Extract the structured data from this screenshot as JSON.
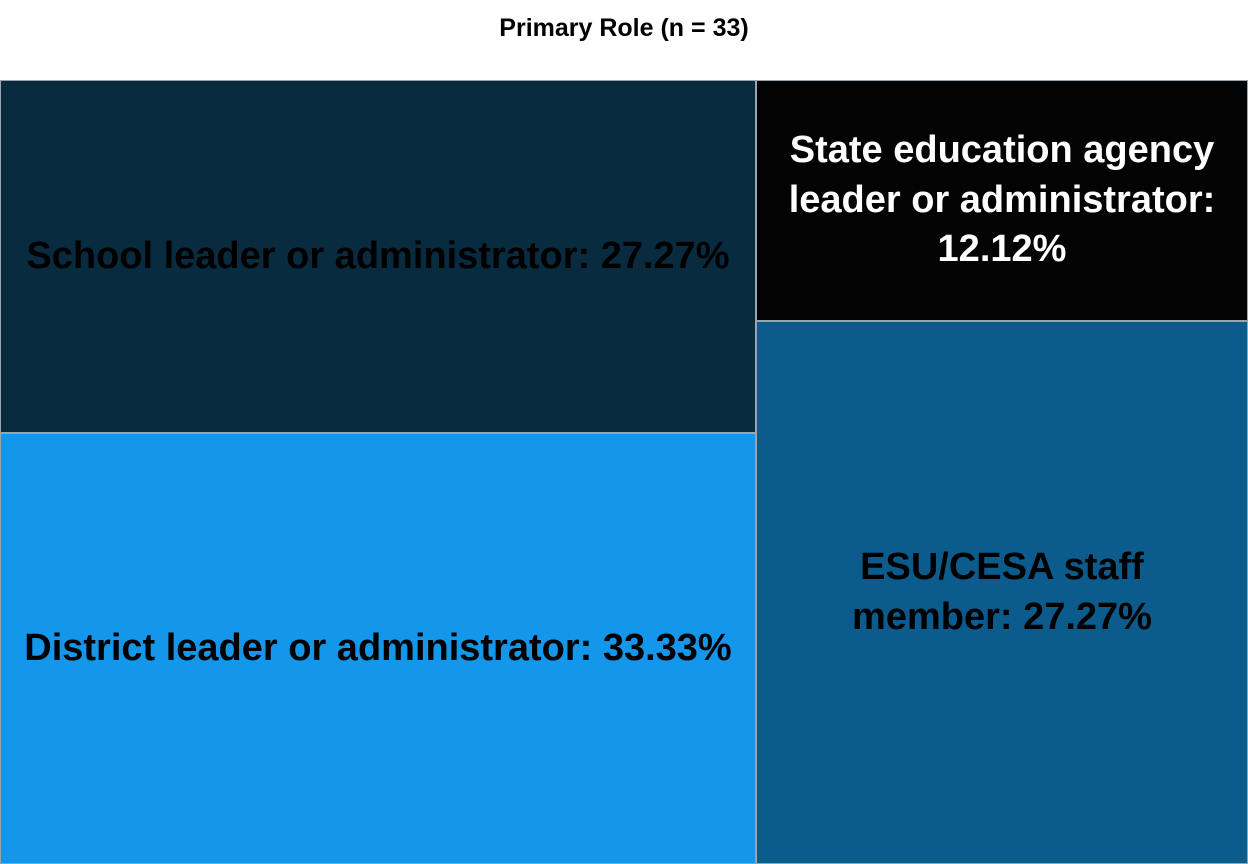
{
  "chart_data": {
    "type": "treemap",
    "title": "Primary Role (n = 33)",
    "tiles": [
      {
        "name": "School leader or administrator",
        "value": 27.27,
        "label": "School leader or administrator: 27.27%",
        "color": "#082b3f",
        "text_color": "#000000"
      },
      {
        "name": "District leader or administrator",
        "value": 33.33,
        "label": "District leader or administrator: 33.33%",
        "color": "#1496ea",
        "text_color": "#000000"
      },
      {
        "name": "State education agency leader or administrator",
        "value": 12.12,
        "label": "State education agency leader or administrator: 12.12%",
        "color": "#030303",
        "text_color": "#ffffff"
      },
      {
        "name": "ESU/CESA staff member",
        "value": 27.27,
        "label": "ESU/CESA staff member: 27.27%",
        "color": "#0b5c8c",
        "text_color": "#000000"
      }
    ]
  }
}
